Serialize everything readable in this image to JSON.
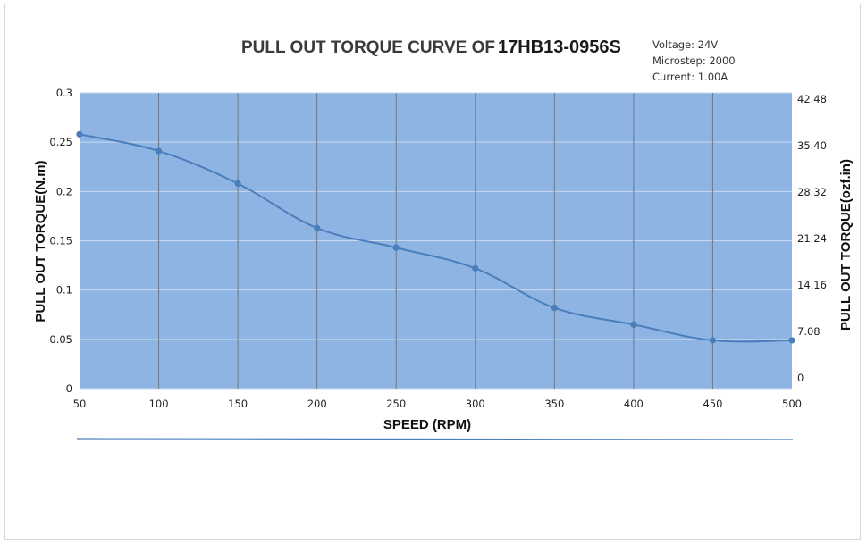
{
  "chart_data": {
    "type": "line",
    "title_prefix": "PULL OUT TORQUE  CURVE OF",
    "title_model": "17HB13-0956S",
    "specs": [
      "Voltage: 24V",
      "Microstep: 2000",
      "Current: 1.00A"
    ],
    "xlabel": "SPEED (RPM)",
    "ylabel": "PULL OUT TORQUE(N.m)",
    "ylabel_right": "PULL OUT TORQUE(ozf.in)",
    "x": [
      50,
      100,
      150,
      200,
      250,
      300,
      350,
      400,
      450,
      500
    ],
    "y": [
      0.258,
      0.241,
      0.208,
      0.163,
      0.143,
      0.122,
      0.082,
      0.065,
      0.049,
      0.049
    ],
    "xlim": [
      50,
      500
    ],
    "ylim": [
      0,
      0.3
    ],
    "x_ticks": [
      "50",
      "100",
      "150",
      "200",
      "250",
      "300",
      "350",
      "400",
      "450",
      "500"
    ],
    "y_ticks": [
      "0",
      "0.05",
      "0.1",
      "0.15",
      "0.2",
      "0.25",
      "0.3"
    ],
    "y_ticks_right": [
      "0",
      "7.08",
      "14.16",
      "21.24",
      "28.32",
      "35.40",
      "42.48"
    ],
    "grid": "vertical lines at x ticks, horizontal lines at y ticks",
    "plot_background": "#8eb4e3",
    "line_color": "#4a7ebb"
  }
}
